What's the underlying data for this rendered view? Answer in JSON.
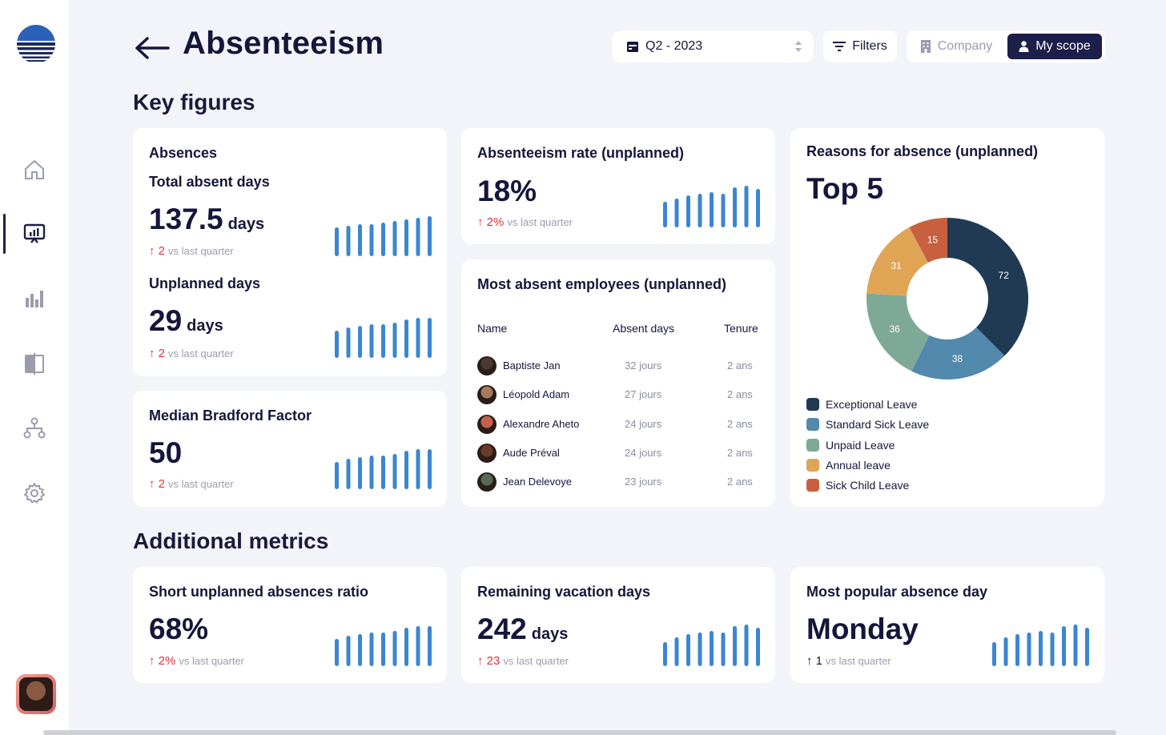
{
  "header": {
    "title": "Absenteeism",
    "period": "Q2 - 2023",
    "filters_label": "Filters",
    "company_label": "Company",
    "my_scope_label": "My scope"
  },
  "sections": {
    "key_figures": "Key figures",
    "additional_metrics": "Additional metrics"
  },
  "sidebar": {
    "items": [
      "home",
      "dashboard",
      "analytics",
      "compare",
      "org-chart",
      "settings"
    ],
    "active": "dashboard"
  },
  "absences": {
    "title": "Absences",
    "total_label": "Total absent days",
    "total_value": "137.5",
    "total_unit": "days",
    "total_delta": "2",
    "total_delta_text": "vs last quarter",
    "unplanned_label": "Unplanned days",
    "unplanned_value": "29",
    "unplanned_unit": "days",
    "unplanned_delta": "2",
    "unplanned_delta_text": "vs last quarter"
  },
  "bradford": {
    "title": "Median Bradford Factor",
    "value": "50",
    "delta": "2",
    "delta_text": "vs last quarter"
  },
  "absenteeism_rate": {
    "title": "Absenteeism rate (unplanned)",
    "value": "18%",
    "delta": "2%",
    "delta_text": "vs last quarter"
  },
  "employees": {
    "title": "Most absent employees (unplanned)",
    "columns": {
      "name": "Name",
      "days": "Absent days",
      "tenure": "Tenure"
    },
    "rows": [
      {
        "name": "Baptiste Jan",
        "days": "32 jours",
        "tenure": "2 ans"
      },
      {
        "name": "Léopold Adam",
        "days": "27 jours",
        "tenure": "2 ans"
      },
      {
        "name": "Alexandre Aheto",
        "days": "24 jours",
        "tenure": "2 ans"
      },
      {
        "name": "Aude Préval",
        "days": "24 jours",
        "tenure": "2 ans"
      },
      {
        "name": "Jean Delevoye",
        "days": "23 jours",
        "tenure": "2 ans"
      }
    ]
  },
  "reasons": {
    "title": "Reasons for absence (unplanned)",
    "subtitle": "Top 5"
  },
  "short_ratio": {
    "title": "Short unplanned absences ratio",
    "value": "68%",
    "delta": "2%",
    "delta_text": "vs last quarter"
  },
  "vacation": {
    "title": "Remaining vacation days",
    "value": "242",
    "unit": "days",
    "delta": "23",
    "delta_text": "vs last quarter"
  },
  "popular_day": {
    "title": "Most popular absence day",
    "value": "Monday",
    "delta": "1",
    "delta_text": "vs last quarter"
  },
  "chart_data": {
    "type": "pie",
    "donut": true,
    "categories": [
      "Exceptional Leave",
      "Standard Sick Leave",
      "Unpaid Leave",
      "Annual leave",
      "Sick Child Leave"
    ],
    "values": [
      72,
      38,
      36,
      31,
      15
    ],
    "colors": [
      "#203a54",
      "#5289ad",
      "#7ea996",
      "#dfa555",
      "#c8603f"
    ],
    "legend": "bottom-left"
  },
  "spark_color": "#3b86d1",
  "avatar_colors": [
    "#4a3a35",
    "#a87a5c",
    "#c5604f",
    "#6b3a28",
    "#556b5a"
  ]
}
